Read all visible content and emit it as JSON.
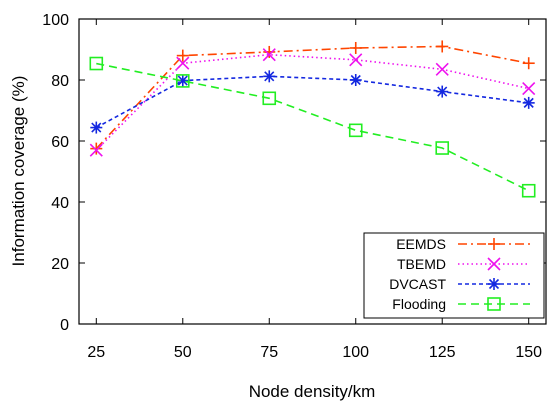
{
  "chart_data": {
    "type": "line",
    "title": "",
    "xlabel": "Node density/km",
    "ylabel": "Information coverage (%)",
    "x": [
      25,
      50,
      75,
      100,
      125,
      150
    ],
    "xticks": [
      25,
      50,
      75,
      100,
      125,
      150
    ],
    "yticks": [
      0,
      20,
      40,
      60,
      80,
      100
    ],
    "xlim": [
      20,
      155
    ],
    "ylim": [
      0,
      100
    ],
    "grid": false,
    "legend_position": "bottom-right",
    "series": [
      {
        "name": "EEMDS",
        "color": "#ff4500",
        "dash": "dash-dot",
        "marker": "plus",
        "values": [
          57.5,
          88,
          89.2,
          90.5,
          91,
          85.5
        ]
      },
      {
        "name": "TBEMD",
        "color": "#ee11ee",
        "dash": "dotted",
        "marker": "x",
        "values": [
          57,
          85.5,
          88.3,
          86.6,
          83.5,
          77.2
        ]
      },
      {
        "name": "DVCAST",
        "color": "#1428e0",
        "dash": "dashed",
        "marker": "asterisk",
        "values": [
          64.4,
          79.8,
          81.2,
          80,
          76.2,
          72.5
        ]
      },
      {
        "name": "Flooding",
        "color": "#22ee22",
        "dash": "long-dashed",
        "marker": "square",
        "values": [
          85.4,
          79.7,
          74,
          63.5,
          57.7,
          43.7
        ]
      }
    ]
  }
}
